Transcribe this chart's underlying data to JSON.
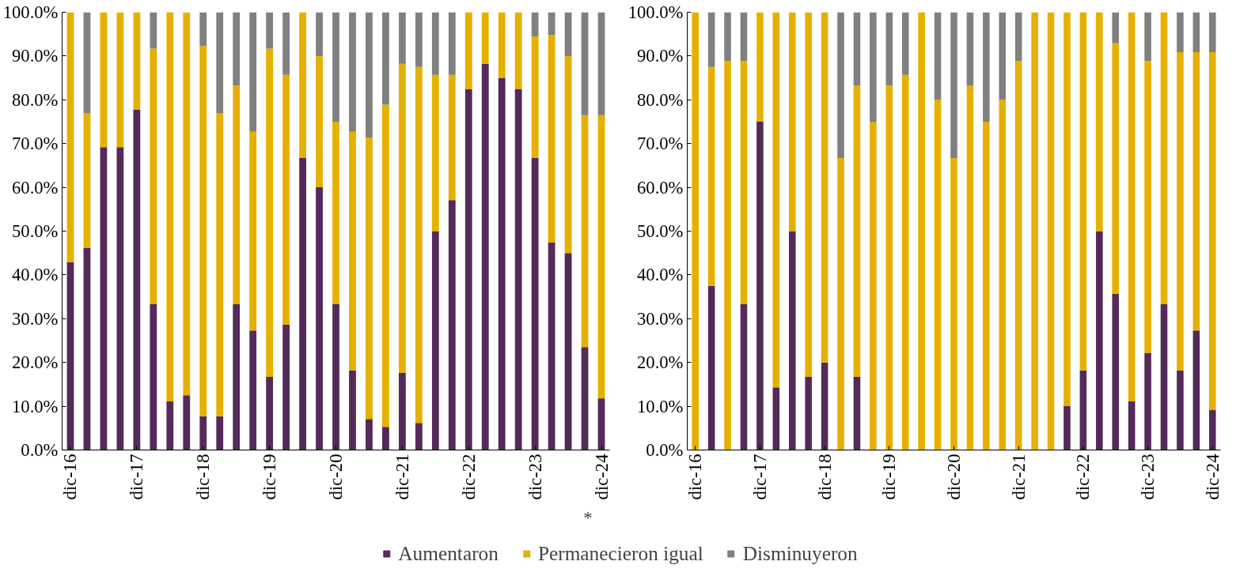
{
  "chart_data": [
    {
      "type": "bar",
      "stacked": true,
      "legend": "bottom",
      "grid": false,
      "categories": [
        "dic-16",
        null,
        null,
        null,
        "dic-17",
        null,
        null,
        null,
        "dic-18",
        null,
        null,
        null,
        "dic-19",
        null,
        null,
        null,
        "dic-20",
        null,
        null,
        null,
        "dic-21",
        null,
        null,
        null,
        "dic-22",
        null,
        null,
        null,
        "dic-23",
        null,
        null,
        null,
        "dic-24"
      ],
      "ylim": [
        0,
        100
      ],
      "yticks": [
        {
          "value": 0,
          "label": "0.0%"
        },
        {
          "value": 10,
          "label": "10.0%"
        },
        {
          "value": 20,
          "label": "20.0%"
        },
        {
          "value": 30,
          "label": "30.0%"
        },
        {
          "value": 40,
          "label": "40.0%"
        },
        {
          "value": 50,
          "label": "50.0%"
        },
        {
          "value": 60,
          "label": "60.0%"
        },
        {
          "value": 70,
          "label": "70.0%"
        },
        {
          "value": 80,
          "label": "80.0%"
        },
        {
          "value": 90,
          "label": "90.0%"
        },
        {
          "value": 100,
          "label": "100.0%"
        }
      ],
      "annotations": [
        "*"
      ],
      "series": [
        {
          "name": "Aumentaron",
          "color": "#542a5a",
          "values": [
            42.9,
            46.2,
            69.2,
            69.2,
            77.8,
            33.3,
            11.1,
            12.5,
            7.7,
            7.7,
            33.3,
            27.3,
            16.7,
            28.6,
            66.7,
            60,
            33.3,
            18.2,
            7.1,
            5.3,
            17.6,
            6.2,
            50,
            57.1,
            82.4,
            88.2,
            85,
            82.4,
            66.7,
            47.4,
            45,
            23.5,
            11.8
          ]
        },
        {
          "name": "Permanecieron igual",
          "color": "#e6b000",
          "values": [
            57.1,
            30.8,
            30.8,
            30.8,
            22.2,
            58.4,
            88.9,
            87.5,
            84.6,
            69.2,
            50,
            45.4,
            75,
            57.1,
            33.3,
            30,
            41.7,
            54.5,
            64.3,
            73.6,
            70.6,
            81.3,
            35.7,
            28.6,
            17.6,
            11.8,
            15,
            17.6,
            27.8,
            47.4,
            45,
            53,
            64.7
          ]
        },
        {
          "name": "Disminuyeron",
          "color": "#808080",
          "values": [
            0,
            23,
            0,
            0,
            0,
            8.3,
            0,
            0,
            7.7,
            23.1,
            16.7,
            27.3,
            8.3,
            14.3,
            0,
            10,
            25,
            27.3,
            28.6,
            21.1,
            11.8,
            12.5,
            14.3,
            14.3,
            0,
            0,
            0,
            0,
            5.5,
            5.2,
            10,
            23.5,
            23.5
          ]
        }
      ]
    },
    {
      "type": "bar",
      "stacked": true,
      "grid": false,
      "categories": [
        "dic-16",
        null,
        null,
        null,
        "dic-17",
        null,
        null,
        null,
        "dic-18",
        null,
        null,
        null,
        "dic-19",
        null,
        null,
        null,
        "dic-20",
        null,
        null,
        null,
        "dic-21",
        null,
        null,
        null,
        "dic-22",
        null,
        null,
        null,
        "dic-23",
        null,
        null,
        null,
        "dic-24"
      ],
      "ylim": [
        0,
        100
      ],
      "yticks": [
        {
          "value": 0,
          "label": "0.0%"
        },
        {
          "value": 10,
          "label": "10.0%"
        },
        {
          "value": 20,
          "label": "20.0%"
        },
        {
          "value": 30,
          "label": "30.0%"
        },
        {
          "value": 40,
          "label": "40.0%"
        },
        {
          "value": 50,
          "label": "50.0%"
        },
        {
          "value": 60,
          "label": "60.0%"
        },
        {
          "value": 70,
          "label": "70.0%"
        },
        {
          "value": 80,
          "label": "80.0%"
        },
        {
          "value": 90,
          "label": "90.0%"
        },
        {
          "value": 100,
          "label": "100.0%"
        }
      ],
      "series": [
        {
          "color": "#542a5a",
          "values": [
            0,
            37.5,
            0,
            33.3,
            75,
            14.3,
            50,
            16.7,
            20,
            0,
            16.7,
            0,
            0,
            0,
            0,
            0,
            0,
            0,
            0,
            0,
            0,
            0,
            0,
            10,
            18.2,
            50,
            35.7,
            11.1,
            22.2,
            33.3,
            18.2,
            27.3,
            9.1
          ]
        },
        {
          "color": "#e6b000",
          "values": [
            100,
            50,
            88.9,
            55.6,
            25,
            85.7,
            50,
            83.3,
            80,
            66.7,
            66.6,
            75,
            83.3,
            85.7,
            100,
            80,
            66.7,
            83.3,
            75,
            80,
            88.9,
            100,
            100,
            90,
            81.8,
            50,
            57.2,
            88.9,
            66.7,
            66.7,
            72.7,
            63.6,
            81.8
          ]
        },
        {
          "color": "#808080",
          "values": [
            0,
            12.5,
            11.1,
            11.1,
            0,
            0,
            0,
            0,
            0,
            33.3,
            16.7,
            25,
            16.7,
            14.3,
            0,
            20,
            33.3,
            16.7,
            25,
            20,
            11.1,
            0,
            0,
            0,
            0,
            0,
            7.1,
            0,
            11.1,
            0,
            9.1,
            9.1,
            9.1
          ]
        }
      ]
    }
  ]
}
